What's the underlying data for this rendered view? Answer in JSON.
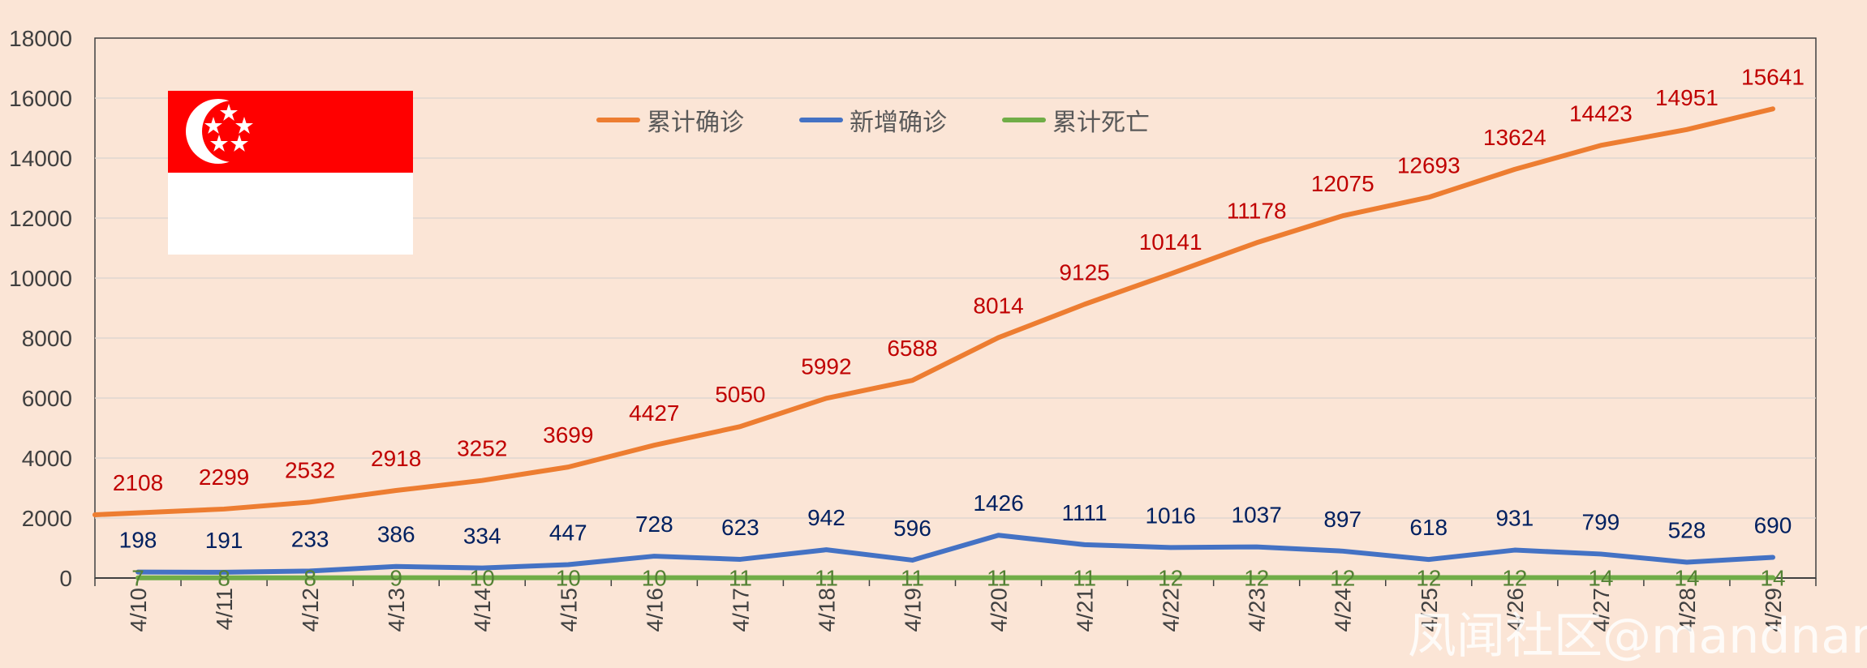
{
  "chart_data": {
    "type": "line",
    "categories": [
      "4/10",
      "4/11",
      "4/12",
      "4/13",
      "4/14",
      "4/15",
      "4/16",
      "4/17",
      "4/18",
      "4/19",
      "4/20",
      "4/21",
      "4/22",
      "4/23",
      "4/24",
      "4/25",
      "4/26",
      "4/27",
      "4/28",
      "4/29"
    ],
    "ylim": [
      0,
      18000
    ],
    "yticks": [
      0,
      2000,
      4000,
      6000,
      8000,
      10000,
      12000,
      14000,
      16000,
      18000
    ],
    "grid": true,
    "legend_position": "top-center",
    "series": [
      {
        "name": "累计确诊",
        "color": "#ed7d31",
        "label_color": "#c00000",
        "values": [
          2108,
          2299,
          2532,
          2918,
          3252,
          3699,
          4427,
          5050,
          5992,
          6588,
          8014,
          9125,
          10141,
          11178,
          12075,
          12693,
          13624,
          14423,
          14951,
          15641
        ]
      },
      {
        "name": "新增确诊",
        "color": "#4472c4",
        "label_color": "#002060",
        "values": [
          198,
          191,
          233,
          386,
          334,
          447,
          728,
          623,
          942,
          596,
          1426,
          1111,
          1016,
          1037,
          897,
          618,
          931,
          799,
          528,
          690
        ]
      },
      {
        "name": "累计死亡",
        "color": "#70ad47",
        "label_color": "#548235",
        "values": [
          7,
          8,
          8,
          9,
          10,
          10,
          10,
          11,
          11,
          11,
          11,
          11,
          12,
          12,
          12,
          12,
          12,
          14,
          14,
          14
        ]
      }
    ]
  },
  "legend": {
    "items": [
      {
        "label": "累计确诊",
        "color": "#ed7d31"
      },
      {
        "label": "新增确诊",
        "color": "#4472c4"
      },
      {
        "label": "累计死亡",
        "color": "#70ad47"
      }
    ]
  },
  "flag": {
    "name": "singapore-flag",
    "top_color": "#ff0000",
    "bottom_color": "#ffffff"
  },
  "watermark": "凤闻社区@mandnan",
  "colors": {
    "background": "#fbe5d6",
    "grid": "#e0d6d0",
    "axis": "#595959"
  }
}
